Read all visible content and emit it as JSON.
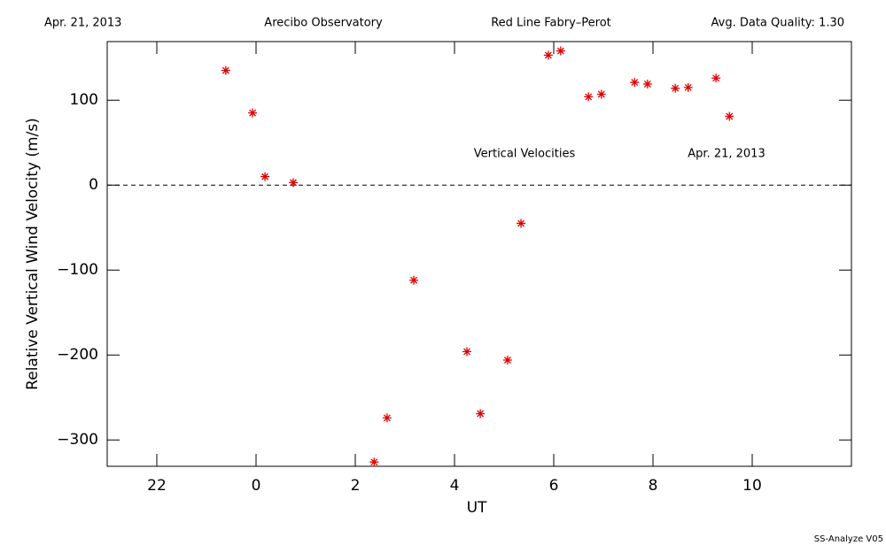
{
  "chart_data": {
    "type": "scatter",
    "header": [
      "Apr. 21, 2013",
      "Arecibo Observatory",
      "Red Line Fabry–Perot",
      "Avg. Data Quality: 1.30"
    ],
    "annotations": [
      "Vertical Velocities",
      "Apr. 21, 2013"
    ],
    "footer": "SS-Analyze V05",
    "xlabel": "UT",
    "ylabel": "Relative Vertical Wind Velocity (m/s)",
    "xlim": [
      -3,
      12
    ],
    "ylim": [
      -331,
      169
    ],
    "xticks": [
      {
        "value": -2,
        "label": "22"
      },
      0,
      2,
      4,
      6,
      8,
      10
    ],
    "yticks": [
      {
        "value": -300,
        "label": "−300"
      },
      {
        "value": -200,
        "label": "−200"
      },
      {
        "value": -100,
        "label": "−100"
      },
      0,
      100
    ],
    "hline": 0,
    "color": "#e00000",
    "x": [
      -0.61,
      -0.07,
      0.18,
      0.75,
      2.38,
      2.64,
      3.18,
      4.25,
      4.52,
      5.07,
      5.34,
      5.89,
      6.14,
      6.7,
      6.96,
      7.63,
      7.89,
      8.45,
      8.71,
      9.27,
      9.54
    ],
    "values": [
      135,
      85,
      10,
      3,
      -326,
      -274,
      -112,
      -196,
      -269,
      -206,
      -45,
      153,
      158,
      104,
      107,
      121,
      119,
      114,
      115,
      126,
      81
    ]
  }
}
